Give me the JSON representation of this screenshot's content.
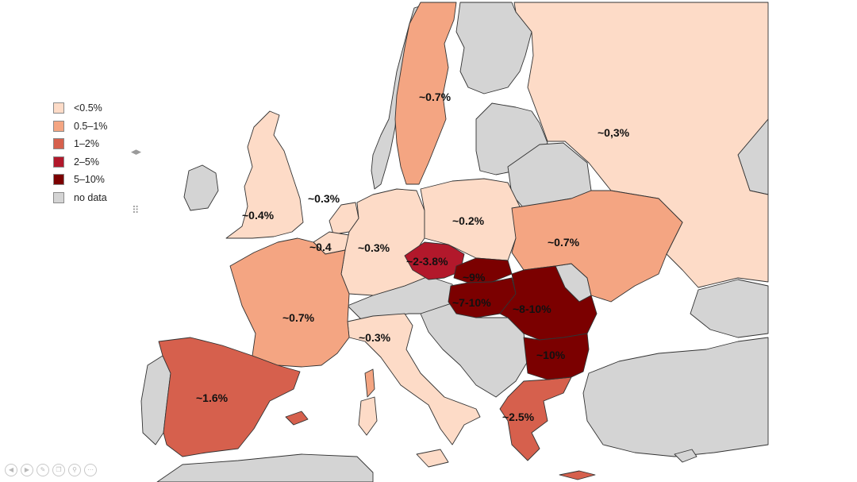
{
  "colors": {
    "lt_0_5": "#fddbc7",
    "c_0_5_1": "#f4a582",
    "c_1_2": "#d6604d",
    "c_2_5": "#b2182b",
    "c_5_10": "#7b0000",
    "no_data": "#d4d4d4",
    "sea": "#ffffff"
  },
  "legend": [
    {
      "label": "<0.5%",
      "color_key": "lt_0_5"
    },
    {
      "label": "0.5–1%",
      "color_key": "c_0_5_1"
    },
    {
      "label": "1–2%",
      "color_key": "c_1_2"
    },
    {
      "label": "2–5%",
      "color_key": "c_2_5"
    },
    {
      "label": "5–10%",
      "color_key": "c_5_10"
    },
    {
      "label": "no data",
      "color_key": "no_data"
    }
  ],
  "regions": {
    "sweden": {
      "value": "~0.7%"
    },
    "russia": {
      "value": "~0,3%"
    },
    "uk": {
      "value": "~0.4%"
    },
    "netherlands": {
      "value": "~0.3%"
    },
    "belgium": {
      "value": "~0.4"
    },
    "germany": {
      "value": "~0.3%"
    },
    "poland": {
      "value": "~0.2%"
    },
    "ukraine": {
      "value": "~0.7%"
    },
    "czechia": {
      "value": "~2-3.8%"
    },
    "slovakia": {
      "value": "~9%"
    },
    "hungary": {
      "value": "~7-10%"
    },
    "romania": {
      "value": "~8-10%"
    },
    "bulgaria": {
      "value": "~10%"
    },
    "france": {
      "value": "~0.7%"
    },
    "italy": {
      "value": "~0.3%"
    },
    "spain": {
      "value": "~1.6%"
    },
    "greece": {
      "value": "~2.5%"
    }
  },
  "toolbar": {
    "icons": [
      "prev-icon",
      "next-icon",
      "pen-icon",
      "copy-icon",
      "zoom-icon",
      "more-icon"
    ],
    "glyphs": [
      "◀",
      "▶",
      "✎",
      "❐",
      "⚲",
      "⋯"
    ]
  }
}
